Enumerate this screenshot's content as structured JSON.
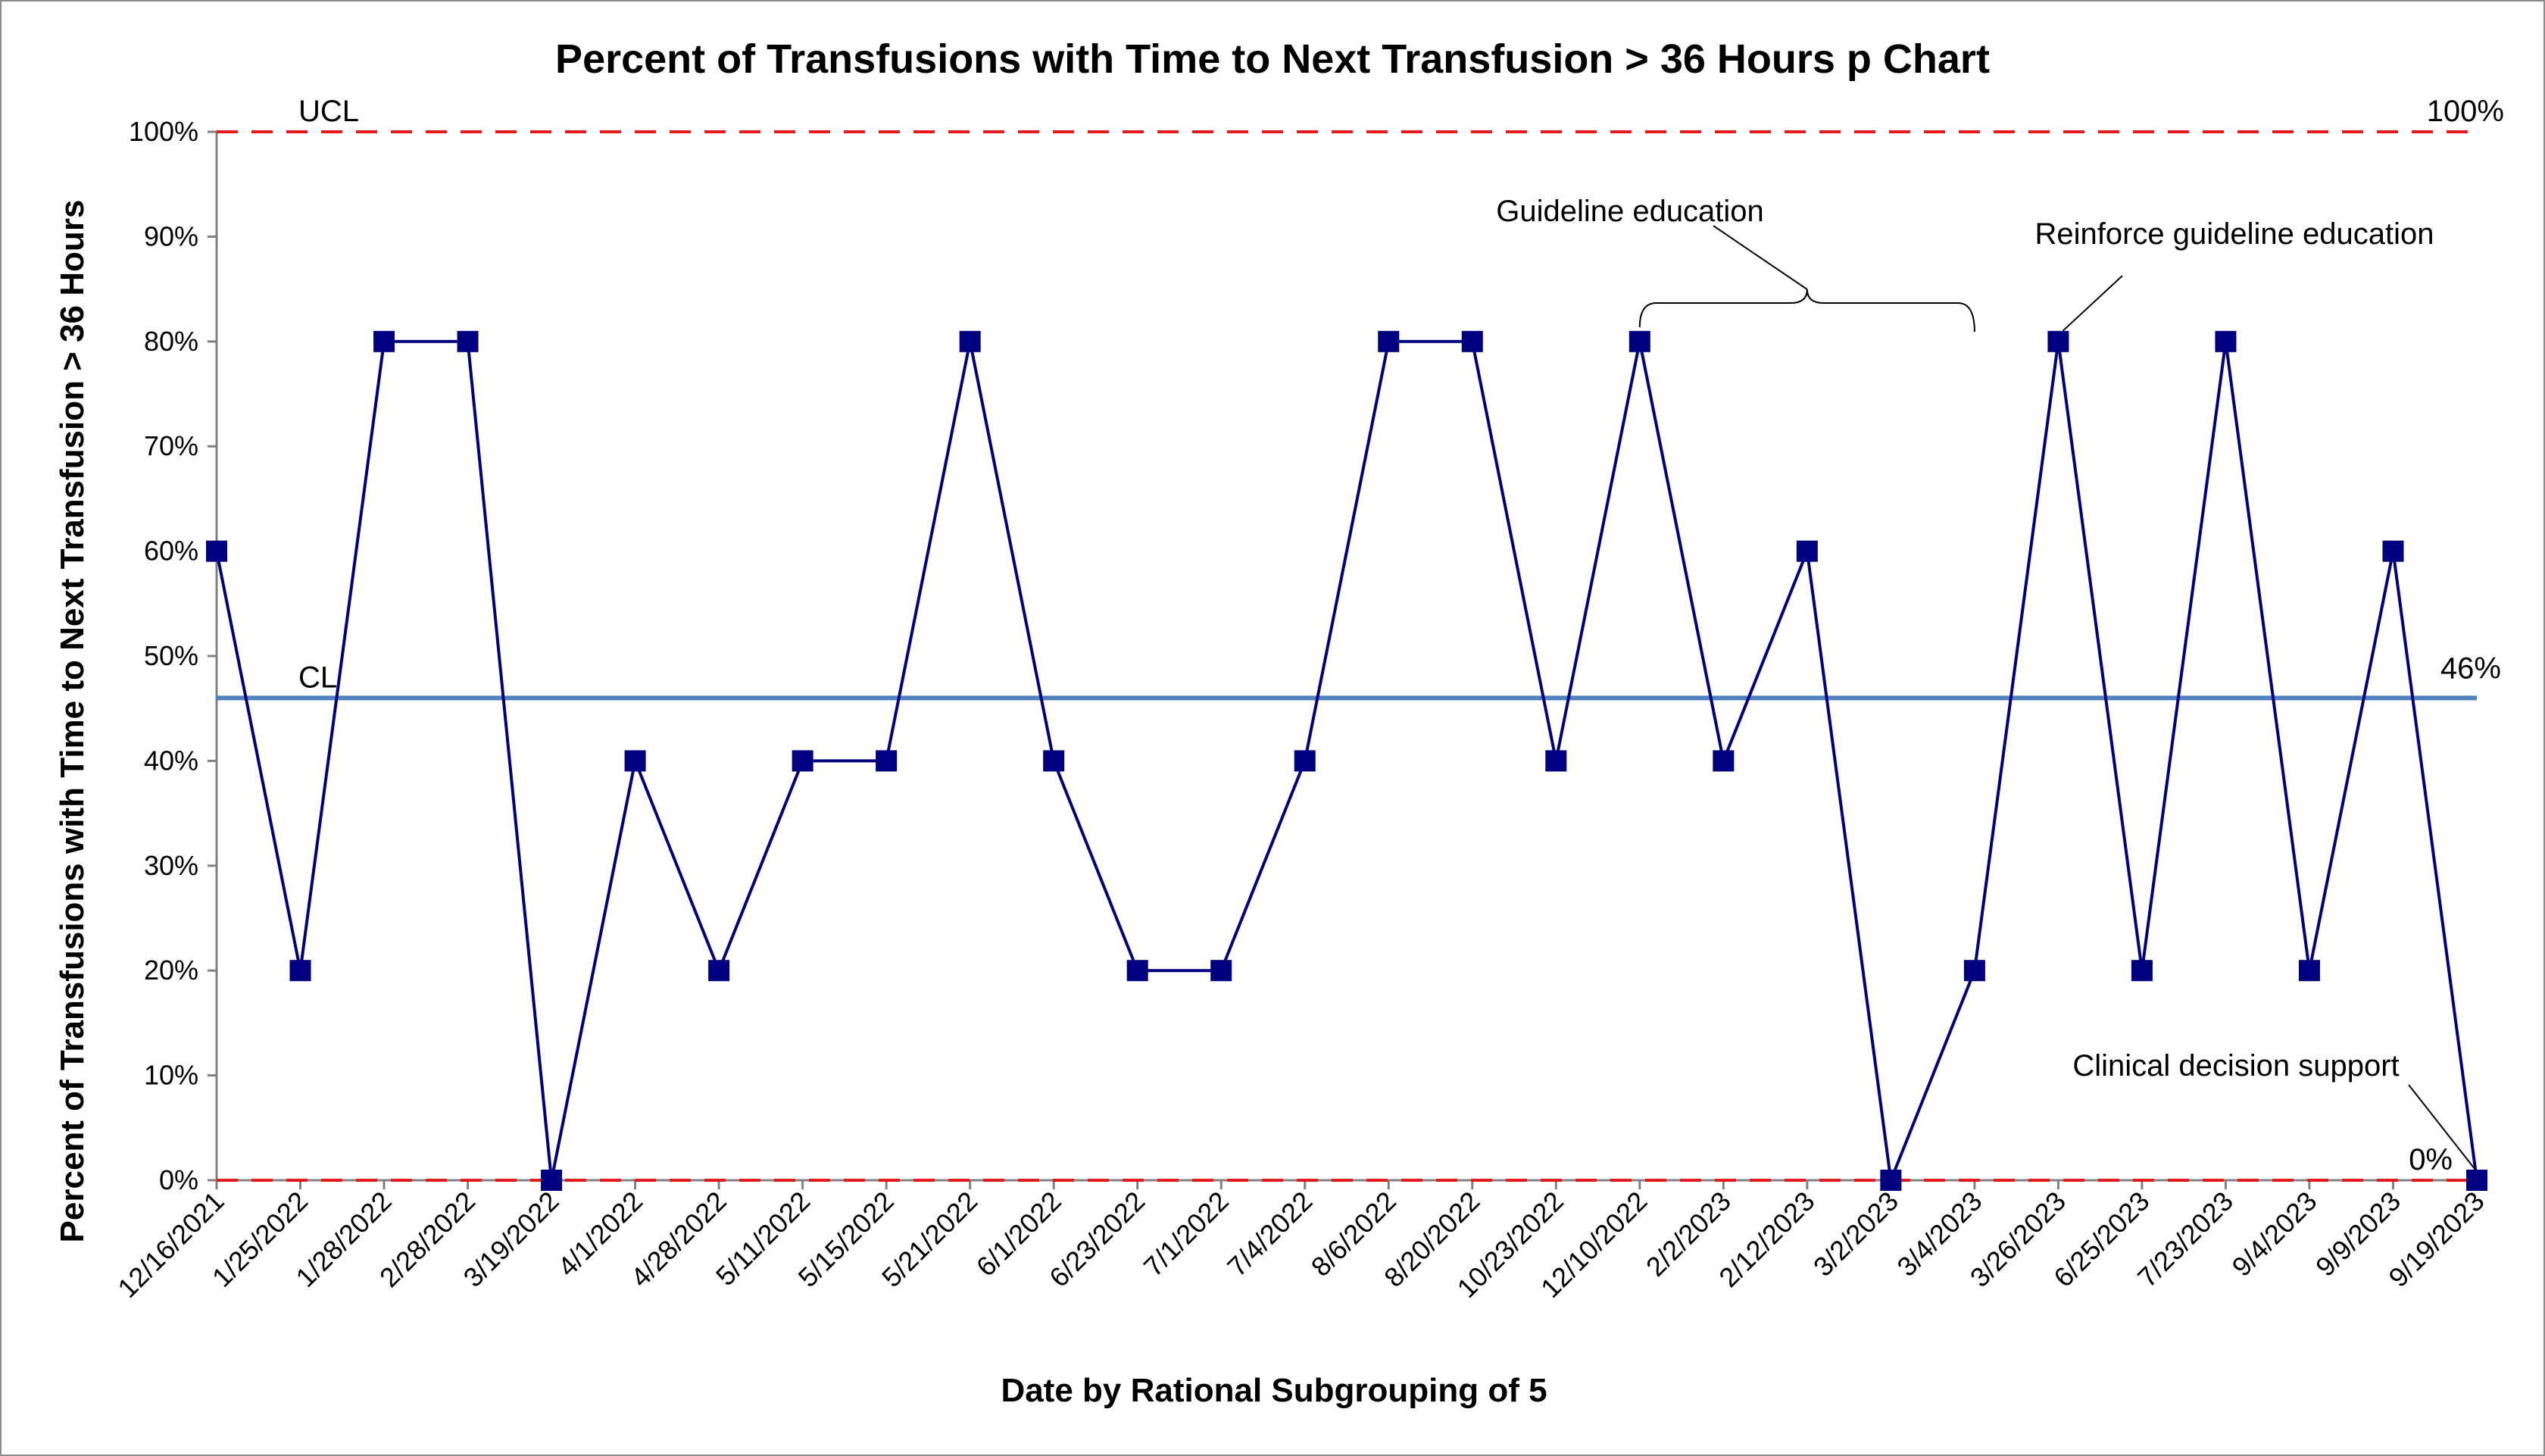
{
  "chart_data": {
    "type": "line",
    "title": "Percent of Transfusions with Time to Next Transfusion > 36 Hours p Chart",
    "xlabel": "Date by Rational Subgrouping of 5",
    "ylabel": "Percent of Transfusions with Time to Next Transfusion > 36 Hours",
    "ylim": [
      0,
      100
    ],
    "y_ticks": [
      "0%",
      "10%",
      "20%",
      "30%",
      "40%",
      "50%",
      "60%",
      "70%",
      "80%",
      "90%",
      "100%"
    ],
    "categories": [
      "12/16/2021",
      "1/25/2022",
      "1/28/2022",
      "2/28/2022",
      "3/19/2022",
      "4/1/2022",
      "4/28/2022",
      "5/11/2022",
      "5/15/2022",
      "5/21/2022",
      "6/1/2022",
      "6/23/2022",
      "7/1/2022",
      "7/4/2022",
      "8/6/2022",
      "8/20/2022",
      "10/23/2022",
      "12/10/2022",
      "2/2/2023",
      "2/12/2023",
      "3/2/2023",
      "3/4/2023",
      "3/26/2023",
      "6/25/2023",
      "7/23/2023",
      "9/4/2023",
      "9/9/2023",
      "9/19/2023"
    ],
    "series": [
      {
        "values": [
          60,
          20,
          80,
          80,
          0,
          40,
          20,
          40,
          40,
          80,
          40,
          20,
          20,
          40,
          80,
          80,
          40,
          80,
          40,
          60,
          0,
          20,
          80,
          20,
          80,
          20,
          60,
          0
        ],
        "color": "#000080"
      }
    ],
    "ucl": {
      "label": "UCL",
      "value": 100,
      "value_label": "100%",
      "color": "#e41a1c"
    },
    "cl": {
      "label": "CL",
      "value": 46,
      "value_label": "46%",
      "color": "#4f81bd"
    },
    "lcl": {
      "value": 0,
      "value_label": "0%",
      "color": "#e41a1c"
    },
    "annotations": [
      {
        "text": "Guideline education",
        "bracket_from": "12/10/2022",
        "bracket_to": "3/4/2023"
      },
      {
        "text": "Reinforce guideline education",
        "points_to": "3/26/2023"
      },
      {
        "text": "Clinical decision support",
        "points_to": "9/19/2023"
      }
    ],
    "grid": false,
    "legend": "none"
  }
}
